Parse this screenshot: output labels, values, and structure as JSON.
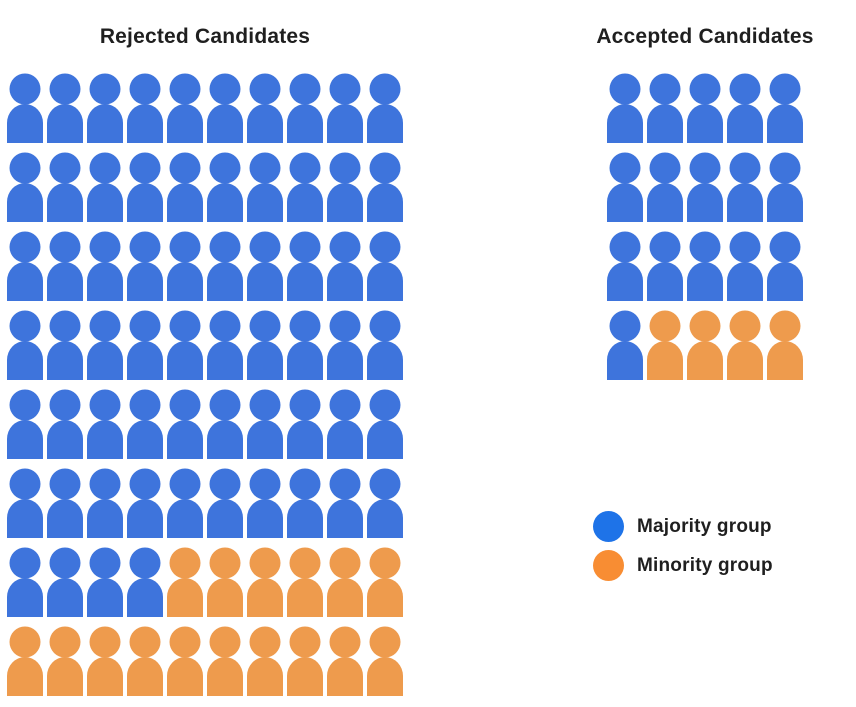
{
  "chart_data": {
    "type": "pictogram",
    "description": "Icon-array (waffle) chart of candidate selection outcomes; each person icon = 1 candidate, rows fill majority-first then minority.",
    "icon_unit": "1 candidate",
    "panels": [
      {
        "title": "Rejected Candidates",
        "columns": 10,
        "rows": [
          [
            10,
            0
          ],
          [
            10,
            0
          ],
          [
            10,
            0
          ],
          [
            10,
            0
          ],
          [
            10,
            0
          ],
          [
            10,
            0
          ],
          [
            4,
            6
          ],
          [
            0,
            10
          ]
        ],
        "totals": {
          "majority": 64,
          "minority": 16,
          "total": 80
        }
      },
      {
        "title": "Accepted Candidates",
        "columns": 5,
        "rows": [
          [
            5,
            0
          ],
          [
            5,
            0
          ],
          [
            5,
            0
          ],
          [
            1,
            4
          ]
        ],
        "totals": {
          "majority": 16,
          "minority": 4,
          "total": 20
        }
      }
    ],
    "legend": [
      {
        "key": "majority",
        "label": "Majority group",
        "color": "#1E73E8"
      },
      {
        "key": "minority",
        "label": "Minority group",
        "color": "#F88D33"
      }
    ],
    "icon_colors": {
      "majority": "#3E74DC",
      "minority": "#EE9B4D"
    },
    "layout": {
      "grid_on": false,
      "legend_position": "right-middle",
      "background": "#FFFFFF",
      "text_color": "#1F1F1F"
    }
  }
}
